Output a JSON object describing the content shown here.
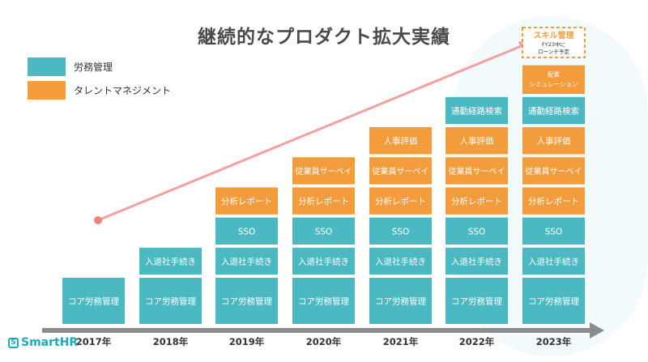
{
  "title": "継続的なプロダクト拡大実績",
  "legend": [
    {
      "label": "労務管理",
      "color": "#4bb9c2"
    },
    {
      "label": "タレントマネジメント",
      "color": "#f39c3c"
    }
  ],
  "logo": "SmartHR",
  "chart_data": {
    "type": "bar",
    "categories": [
      "2017年",
      "2018年",
      "2019年",
      "2020年",
      "2021年",
      "2022年",
      "2023年"
    ],
    "stacks": [
      [
        {
          "label": "コア労務管理",
          "type": "labor"
        }
      ],
      [
        {
          "label": "コア労務管理",
          "type": "labor"
        },
        {
          "label": "入退社手続き",
          "type": "labor"
        }
      ],
      [
        {
          "label": "コア労務管理",
          "type": "labor"
        },
        {
          "label": "入退社手続き",
          "type": "labor"
        },
        {
          "label": "SSO",
          "type": "labor"
        },
        {
          "label": "分析レポート",
          "type": "talent"
        }
      ],
      [
        {
          "label": "コア労務管理",
          "type": "labor"
        },
        {
          "label": "入退社手続き",
          "type": "labor"
        },
        {
          "label": "SSO",
          "type": "labor"
        },
        {
          "label": "分析レポート",
          "type": "talent"
        },
        {
          "label": "従業員サーベイ",
          "type": "talent"
        }
      ],
      [
        {
          "label": "コア労務管理",
          "type": "labor"
        },
        {
          "label": "入退社手続き",
          "type": "labor"
        },
        {
          "label": "SSO",
          "type": "labor"
        },
        {
          "label": "分析レポート",
          "type": "talent"
        },
        {
          "label": "従業員サーベイ",
          "type": "talent"
        },
        {
          "label": "人事評価",
          "type": "talent"
        }
      ],
      [
        {
          "label": "コア労務管理",
          "type": "labor"
        },
        {
          "label": "入退社手続き",
          "type": "labor"
        },
        {
          "label": "SSO",
          "type": "labor"
        },
        {
          "label": "分析レポート",
          "type": "talent"
        },
        {
          "label": "従業員サーベイ",
          "type": "talent"
        },
        {
          "label": "人事評価",
          "type": "talent"
        },
        {
          "label": "通勤経路検索",
          "type": "labor"
        }
      ],
      [
        {
          "label": "コア労務管理",
          "type": "labor"
        },
        {
          "label": "入退社手続き",
          "type": "labor"
        },
        {
          "label": "SSO",
          "type": "labor"
        },
        {
          "label": "分析レポート",
          "type": "talent"
        },
        {
          "label": "従業員サーベイ",
          "type": "talent"
        },
        {
          "label": "人事評価",
          "type": "talent"
        },
        {
          "label": "通勤経路検索",
          "type": "labor"
        },
        {
          "label": "配置",
          "label2": "シミュレーション",
          "type": "talent"
        }
      ]
    ],
    "planned": {
      "category": "2023年",
      "title": "スキル管理",
      "note_line1": "FY23中に",
      "note_line2": "ローンチ予定"
    },
    "trend_line": {
      "from": "2017年",
      "to": "2023年"
    }
  }
}
